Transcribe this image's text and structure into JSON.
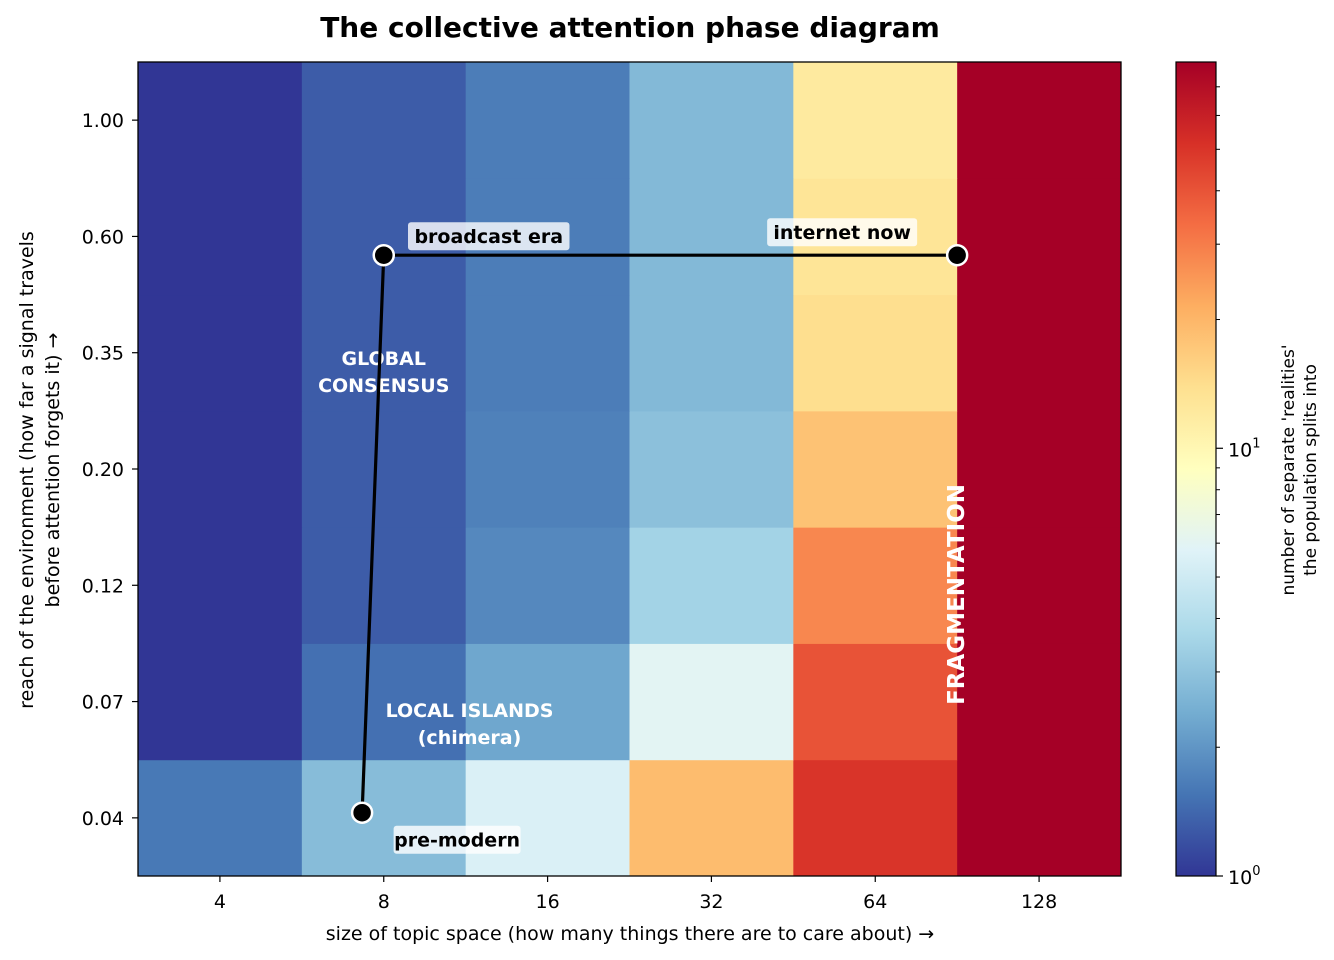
{
  "chart_data": {
    "type": "heatmap",
    "title": "The collective attention phase diagram",
    "xlabel": "size of topic space  (how many things there are to care about)  →",
    "ylabel_lines": [
      "reach of the environment  (how far a signal travels",
      "before attention forgets it)  →"
    ],
    "x_ticks": [
      "4",
      "8",
      "16",
      "32",
      "64",
      "128"
    ],
    "y_ticks": [
      "0.04",
      "0.07",
      "0.12",
      "0.20",
      "0.35",
      "0.60",
      "1.00"
    ],
    "x_scale": "log2",
    "y_scale": "log",
    "grid": false,
    "colorbar": {
      "label_lines": [
        "number of separate 'realities'",
        "the population splits into"
      ],
      "scale": "log",
      "range": [
        1,
        80
      ],
      "colormap": "RdYlBu_r",
      "tick_base": "10",
      "ticks": [
        {
          "value": 1,
          "exp": "0"
        },
        {
          "value": 10,
          "exp": "1"
        }
      ]
    },
    "cells": [
      [
        1.6,
        2.8,
        5.5,
        19,
        50,
        80
      ],
      [
        1.0,
        1.5,
        2.3,
        6.0,
        40,
        80
      ],
      [
        1.0,
        1.3,
        1.8,
        3.5,
        28,
        80
      ],
      [
        1.0,
        1.3,
        1.7,
        2.9,
        18,
        80
      ],
      [
        1.0,
        1.3,
        1.65,
        2.7,
        14,
        80
      ],
      [
        1.0,
        1.3,
        1.65,
        2.7,
        13,
        80
      ],
      [
        1.0,
        1.3,
        1.65,
        2.7,
        12,
        80
      ]
    ],
    "region_labels": [
      {
        "lines": [
          "GLOBAL",
          "CONSENSUS"
        ],
        "x": 8,
        "y": 0.32
      },
      {
        "lines": [
          "LOCAL ISLANDS",
          "(chimera)"
        ],
        "x": 11.5,
        "y": 0.063
      },
      {
        "lines": [
          "FRAGMENTATION"
        ],
        "x": 90,
        "y": 0.115,
        "rotated": true
      }
    ],
    "trajectory": [
      {
        "name": "pre-modern",
        "x": 7.3,
        "y": 0.041
      },
      {
        "name": "broadcast era",
        "x": 8,
        "y": 0.55
      },
      {
        "name": "internet now",
        "x": 90.5,
        "y": 0.55
      }
    ],
    "colors": {
      "trajectory_line": "#000000",
      "marker_fill": "#000000",
      "marker_edge": "#ffffff"
    }
  }
}
